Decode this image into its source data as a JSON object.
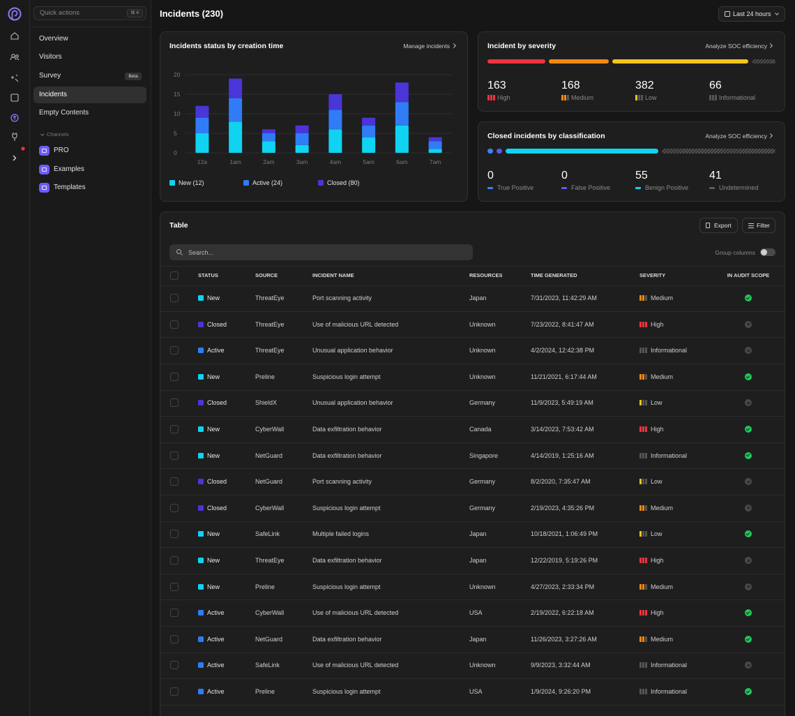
{
  "sidebar": {
    "search_placeholder": "Quick actions",
    "shortcut": "⌘ K",
    "items": [
      {
        "label": "Overview"
      },
      {
        "label": "Visitors"
      },
      {
        "label": "Survey",
        "badge": "Beta"
      },
      {
        "label": "Incidents",
        "active": true
      },
      {
        "label": "Empty Contents"
      }
    ],
    "section": "Channels",
    "channels": [
      "PRO",
      "Examples",
      "Templates"
    ]
  },
  "header": {
    "title": "Incidents (230)",
    "range": "Last 24 hours"
  },
  "chart_data": {
    "type": "bar",
    "stacked": true,
    "title": "Incidents status by creation time",
    "link": "Manage incidents",
    "categories": [
      "12a",
      "1am",
      "2am",
      "3am",
      "4am",
      "5am",
      "6am",
      "7am"
    ],
    "series": [
      {
        "name": "New (12)",
        "color": "#0fd3f0",
        "values": [
          5,
          8,
          3,
          2,
          6,
          4,
          7,
          1
        ]
      },
      {
        "name": "Active (24)",
        "color": "#2f7cf6",
        "values": [
          4,
          6,
          2,
          3,
          5,
          3,
          6,
          2
        ]
      },
      {
        "name": "Closed (80)",
        "color": "#4a35d9",
        "values": [
          3,
          5,
          1,
          2,
          4,
          2,
          5,
          1
        ]
      }
    ],
    "ylim": [
      0,
      20
    ],
    "yticks": [
      0,
      5,
      10,
      15,
      20
    ],
    "grid": true
  },
  "severity": {
    "title": "Incident by severity",
    "link": "Analyze SOC efficiency",
    "levels": [
      {
        "name": "High",
        "value": 163,
        "color": "#ef3340"
      },
      {
        "name": "Medium",
        "value": 168,
        "color": "#f28a12"
      },
      {
        "name": "Low",
        "value": 382,
        "color": "#f5c518"
      },
      {
        "name": "Informational",
        "value": 66,
        "color": "#5c5c5c"
      }
    ]
  },
  "classification": {
    "title": "Closed incidents by classification",
    "link": "Analyze SOC efficiency",
    "levels": [
      {
        "name": "True Positive",
        "value": 0,
        "color": "#3b82f6"
      },
      {
        "name": "False Positive",
        "value": 0,
        "color": "#5b5bef"
      },
      {
        "name": "Benign Positive",
        "value": 55,
        "color": "#0fd3f0"
      },
      {
        "name": "Undetermined",
        "value": 41,
        "color": "#5c5c5c"
      }
    ]
  },
  "table": {
    "title": "Table",
    "export": "Export",
    "filter": "Filter",
    "search_placeholder": "Search...",
    "group_columns": "Group columns",
    "columns": [
      "STATUS",
      "SOURCE",
      "INCIDENT NAME",
      "RESOURCES",
      "TIME GENERATED",
      "SEVERITY",
      "IN AUDIT SCOPE"
    ],
    "rows": [
      {
        "cells": [
          "New",
          "ThreatEye",
          "Port scanning activity",
          "Japan",
          "7/31/2023, 11:42:29 AM",
          "Medium"
        ],
        "status_color": "#0fd3f0",
        "in_audit_scope": true
      },
      {
        "cells": [
          "Closed",
          "ThreatEye",
          "Use of malicious URL detected",
          "Unknown",
          "7/23/2022, 8:41:47 AM",
          "High"
        ],
        "status_color": "#4a35d9",
        "in_audit_scope": false
      },
      {
        "cells": [
          "Active",
          "ThreatEye",
          "Unusual application behavior",
          "Unknown",
          "4/2/2024, 12:42:38 PM",
          "Informational"
        ],
        "status_color": "#2f7cf6",
        "in_audit_scope": false
      },
      {
        "cells": [
          "New",
          "Preline",
          "Suspicious login attempt",
          "Unknown",
          "11/21/2021, 6:17:44 AM",
          "Medium"
        ],
        "status_color": "#0fd3f0",
        "in_audit_scope": true
      },
      {
        "cells": [
          "Closed",
          "ShieldX",
          "Unusual application behavior",
          "Germany",
          "11/9/2023, 5:49:19 AM",
          "Low"
        ],
        "status_color": "#4a35d9",
        "in_audit_scope": false
      },
      {
        "cells": [
          "New",
          "CyberWall",
          "Data exfiltration behavior",
          "Canada",
          "3/14/2023, 7:53:42 AM",
          "High"
        ],
        "status_color": "#0fd3f0",
        "in_audit_scope": true
      },
      {
        "cells": [
          "New",
          "NetGuard",
          "Data exfiltration behavior",
          "Singapore",
          "4/14/2019, 1:25:16 AM",
          "Informational"
        ],
        "status_color": "#0fd3f0",
        "in_audit_scope": true
      },
      {
        "cells": [
          "Closed",
          "NetGuard",
          "Port scanning activity",
          "Germany",
          "8/2/2020, 7:35:47 AM",
          "Low"
        ],
        "status_color": "#4a35d9",
        "in_audit_scope": false
      },
      {
        "cells": [
          "Closed",
          "CyberWall",
          "Suspicious login attempt",
          "Germany",
          "2/19/2023, 4:35:26 PM",
          "Medium"
        ],
        "status_color": "#4a35d9",
        "in_audit_scope": false
      },
      {
        "cells": [
          "New",
          "SafeLink",
          "Multiple failed logins",
          "Japan",
          "10/18/2021, 1:06:49 PM",
          "Low"
        ],
        "status_color": "#0fd3f0",
        "in_audit_scope": true
      },
      {
        "cells": [
          "New",
          "ThreatEye",
          "Data exfiltration behavior",
          "Japan",
          "12/22/2019, 5:19:26 PM",
          "High"
        ],
        "status_color": "#0fd3f0",
        "in_audit_scope": false
      },
      {
        "cells": [
          "New",
          "Preline",
          "Suspicious login attempt",
          "Unknown",
          "4/27/2023, 2:33:34 PM",
          "Medium"
        ],
        "status_color": "#0fd3f0",
        "in_audit_scope": false
      },
      {
        "cells": [
          "Active",
          "CyberWall",
          "Use of malicious URL detected",
          "USA",
          "2/19/2022, 6:22:18 AM",
          "High"
        ],
        "status_color": "#2f7cf6",
        "in_audit_scope": true
      },
      {
        "cells": [
          "Active",
          "NetGuard",
          "Data exfiltration behavior",
          "Japan",
          "11/26/2023, 3:27:26 AM",
          "Medium"
        ],
        "status_color": "#2f7cf6",
        "in_audit_scope": true
      },
      {
        "cells": [
          "Active",
          "SafeLink",
          "Use of malicious URL detected",
          "Unknown",
          "9/9/2023, 3:32:44 AM",
          "Informational"
        ],
        "status_color": "#2f7cf6",
        "in_audit_scope": false
      },
      {
        "cells": [
          "Active",
          "Preline",
          "Suspicious login attempt",
          "USA",
          "1/9/2024, 9:26:20 PM",
          "Informational"
        ],
        "status_color": "#2f7cf6",
        "in_audit_scope": true
      }
    ]
  }
}
